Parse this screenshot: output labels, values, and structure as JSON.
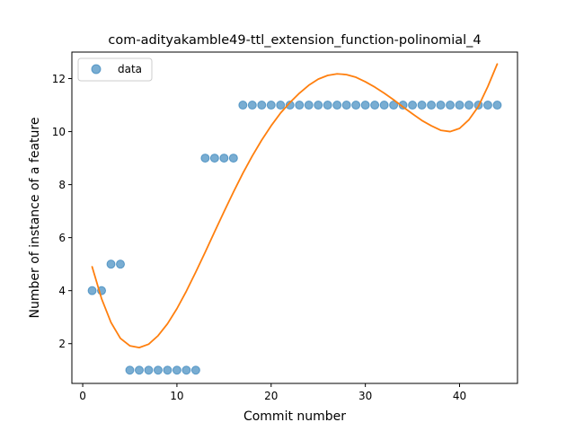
{
  "chart_data": {
    "type": "scatter",
    "title": "com-adityakamble49-ttl_extension_function-polinomial_4",
    "xlabel": "Commit number",
    "ylabel": "Number of instance of a feature",
    "xlim": [
      -1.15,
      46.15
    ],
    "ylim": [
      0.5,
      13.0
    ],
    "xticks": [
      0,
      10,
      20,
      30,
      40
    ],
    "yticks": [
      2,
      4,
      6,
      8,
      10,
      12
    ],
    "grid": false,
    "legend": {
      "placement": "top-left",
      "entries": [
        "data"
      ]
    },
    "series": [
      {
        "name": "data",
        "kind": "scatter",
        "color": "#1f77b4",
        "x": [
          1,
          2,
          3,
          4,
          5,
          6,
          7,
          8,
          9,
          10,
          11,
          12,
          13,
          14,
          15,
          16,
          17,
          18,
          19,
          20,
          21,
          22,
          23,
          24,
          25,
          26,
          27,
          28,
          29,
          30,
          31,
          32,
          33,
          34,
          35,
          36,
          37,
          38,
          39,
          40,
          41,
          42,
          43,
          44
        ],
        "y": [
          4,
          4,
          5,
          5,
          1,
          1,
          1,
          1,
          1,
          1,
          1,
          1,
          9,
          9,
          9,
          9,
          11,
          11,
          11,
          11,
          11,
          11,
          11,
          11,
          11,
          11,
          11,
          11,
          11,
          11,
          11,
          11,
          11,
          11,
          11,
          11,
          11,
          11,
          11,
          11,
          11,
          11,
          11,
          11
        ]
      },
      {
        "kind": "line",
        "color": "#ff7f0e",
        "x": [
          1,
          2,
          3,
          4,
          5,
          6,
          7,
          8,
          9,
          10,
          11,
          12,
          13,
          14,
          15,
          16,
          17,
          18,
          19,
          20,
          21,
          22,
          23,
          24,
          25,
          26,
          27,
          28,
          29,
          30,
          31,
          32,
          33,
          34,
          35,
          36,
          37,
          38,
          39,
          40,
          41,
          42,
          43,
          44
        ],
        "y": [
          4.9,
          3.7,
          2.8,
          2.2,
          1.92,
          1.85,
          1.98,
          2.3,
          2.75,
          3.32,
          3.98,
          4.7,
          5.45,
          6.22,
          6.98,
          7.72,
          8.43,
          9.08,
          9.68,
          10.22,
          10.7,
          11.1,
          11.45,
          11.75,
          11.98,
          12.12,
          12.18,
          12.15,
          12.05,
          11.88,
          11.68,
          11.45,
          11.2,
          10.93,
          10.67,
          10.42,
          10.22,
          10.05,
          10.0,
          10.12,
          10.45,
          10.95,
          11.7,
          12.55
        ]
      }
    ]
  }
}
